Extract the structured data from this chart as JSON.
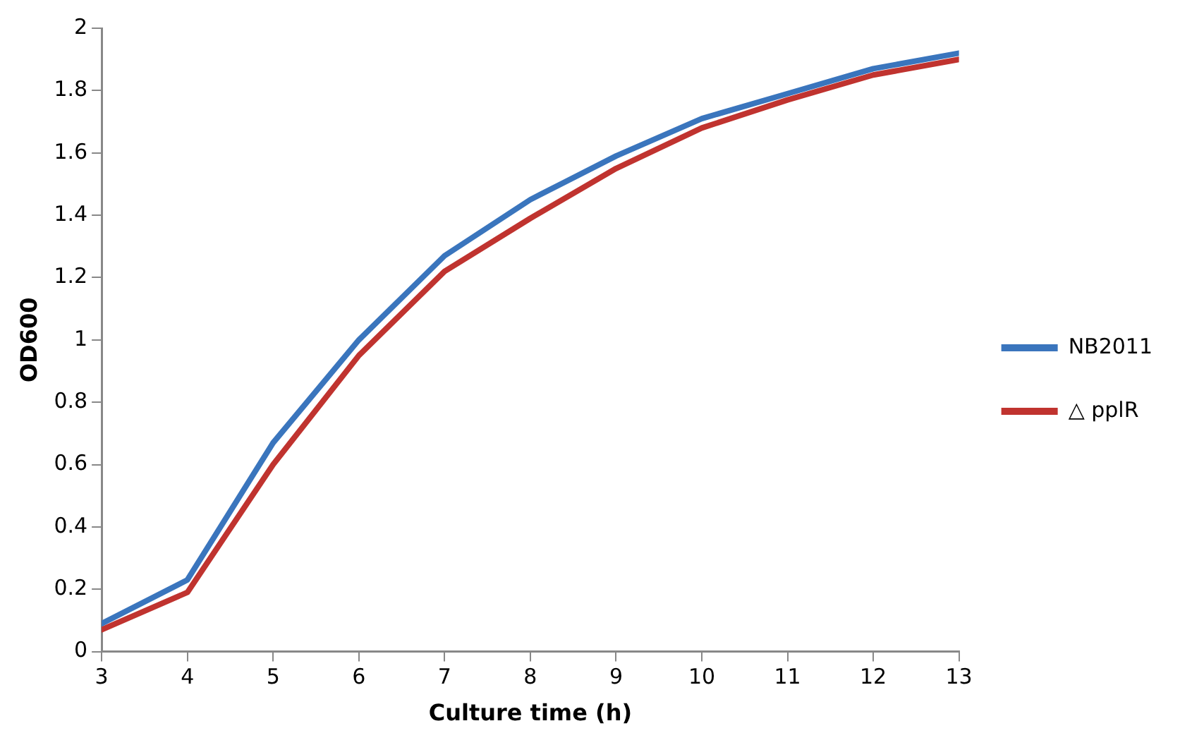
{
  "chart_data": {
    "type": "line",
    "xlabel": "Culture time (h)",
    "ylabel": "OD600",
    "x": [
      3,
      4,
      5,
      6,
      7,
      8,
      9,
      10,
      11,
      12,
      13
    ],
    "series": [
      {
        "name": "NB2011",
        "color": "#3a75bd",
        "values": [
          0.09,
          0.23,
          0.67,
          1.0,
          1.27,
          1.45,
          1.59,
          1.71,
          1.79,
          1.87,
          1.92
        ]
      },
      {
        "name": "△ pplR",
        "color": "#c0332f",
        "values": [
          0.07,
          0.19,
          0.6,
          0.95,
          1.22,
          1.39,
          1.55,
          1.68,
          1.77,
          1.85,
          1.9
        ]
      }
    ],
    "xlim": [
      3,
      13
    ],
    "xticks": [
      3,
      4,
      5,
      6,
      7,
      8,
      9,
      10,
      11,
      12,
      13
    ],
    "ylim": [
      0,
      2
    ],
    "yticks": [
      0,
      0.2,
      0.4,
      0.6,
      0.8,
      1,
      1.2,
      1.4,
      1.6,
      1.8,
      2
    ],
    "grid": false,
    "legend": "right",
    "marker": "none",
    "line_style": "solid"
  }
}
